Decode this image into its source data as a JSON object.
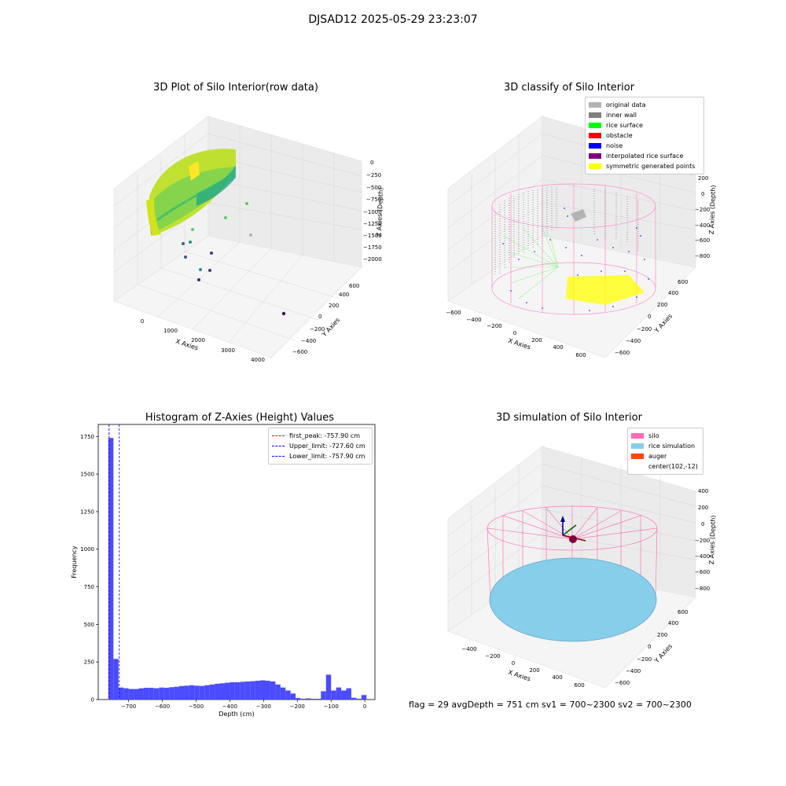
{
  "suptitle": "DJSAD12 2025-05-29 23:23:07",
  "status_text": "flag = 29  avgDepth = 751 cm  sv1 = 700~2300  sv2 = 700~2300",
  "panels": {
    "raw": {
      "title": "3D Plot of Silo Interior(row data)",
      "xlabel": "X Axies",
      "ylabel": "Y Axies",
      "zlabel": "Z Axies (Depth)",
      "x_ticks": [
        "0",
        "1000",
        "2000",
        "3000",
        "4000"
      ],
      "y_ticks": [
        "−600",
        "−400",
        "−200",
        "0",
        "200",
        "400",
        "600"
      ],
      "z_ticks": [
        "0",
        "−250",
        "−500",
        "−750",
        "−1000",
        "−1250",
        "−1500",
        "−1750",
        "−2000"
      ],
      "colormap": "viridis"
    },
    "classify": {
      "title": "3D classify of Silo Interior",
      "xlabel": "X Axies",
      "ylabel": "Y Axies",
      "zlabel": "Z Axies (Depth)",
      "x_ticks": [
        "−600",
        "−400",
        "−200",
        "0",
        "200",
        "400",
        "600"
      ],
      "y_ticks": [
        "−600",
        "−400",
        "−200",
        "0",
        "200",
        "400",
        "600"
      ],
      "z_ticks": [
        "200",
        "0",
        "−200",
        "−400",
        "−600",
        "−800"
      ],
      "legend": [
        {
          "label": "original data",
          "color": "#b3b3b3"
        },
        {
          "label": "inner wall",
          "color": "#808080"
        },
        {
          "label": "rice surface",
          "color": "#00ff00"
        },
        {
          "label": "obstacle",
          "color": "#ff0000"
        },
        {
          "label": "noise",
          "color": "#0000ff"
        },
        {
          "label": "interpolated rice surface",
          "color": "#800080"
        },
        {
          "label": "symmetric generated points",
          "color": "#ffff00"
        }
      ]
    },
    "simulation": {
      "title": "3D simulation of Silo Interior",
      "xlabel": "X Axies",
      "ylabel": "Y Axies",
      "zlabel": "Z Axies (Depth)",
      "x_ticks": [
        "−400",
        "−200",
        "0",
        "200",
        "400",
        "600"
      ],
      "y_ticks": [
        "−600",
        "−400",
        "−200",
        "0",
        "200",
        "400",
        "600"
      ],
      "z_ticks": [
        "400",
        "200",
        "0",
        "−200",
        "−400",
        "−600",
        "−800"
      ],
      "legend": [
        {
          "label": "silo",
          "color": "#ff69b4"
        },
        {
          "label": "rice simulation",
          "color": "#87ceeb"
        },
        {
          "label": "auger",
          "color": "#ff4500"
        },
        {
          "label": "center(102,-12)",
          "color": ""
        }
      ]
    }
  },
  "chart_data": {
    "type": "bar",
    "title": "Histogram of Z-Axies (Height) Values",
    "xlabel": "Depth (cm)",
    "ylabel": "Frequency",
    "xlim": [
      -790,
      30
    ],
    "ylim": [
      0,
      1830
    ],
    "x_ticks": [
      -700,
      -600,
      -500,
      -400,
      -300,
      -200,
      -100,
      0
    ],
    "x_tick_labels": [
      "−700",
      "−600",
      "−500",
      "−400",
      "−300",
      "−200",
      "−100",
      "0"
    ],
    "y_ticks": [
      0,
      250,
      500,
      750,
      1000,
      1250,
      1500,
      1750
    ],
    "bar_color": "#4b4bff",
    "bin_width": 15,
    "bins": [
      [
        -760,
        1740
      ],
      [
        -745,
        270
      ],
      [
        -730,
        80
      ],
      [
        -715,
        75
      ],
      [
        -700,
        70
      ],
      [
        -685,
        70
      ],
      [
        -670,
        75
      ],
      [
        -655,
        78
      ],
      [
        -640,
        78
      ],
      [
        -625,
        75
      ],
      [
        -610,
        80
      ],
      [
        -595,
        78
      ],
      [
        -580,
        82
      ],
      [
        -565,
        85
      ],
      [
        -550,
        90
      ],
      [
        -535,
        92
      ],
      [
        -520,
        95
      ],
      [
        -505,
        92
      ],
      [
        -490,
        90
      ],
      [
        -475,
        95
      ],
      [
        -460,
        100
      ],
      [
        -445,
        105
      ],
      [
        -430,
        108
      ],
      [
        -415,
        112
      ],
      [
        -400,
        115
      ],
      [
        -385,
        115
      ],
      [
        -370,
        118
      ],
      [
        -355,
        120
      ],
      [
        -340,
        122
      ],
      [
        -325,
        125
      ],
      [
        -310,
        128
      ],
      [
        -295,
        125
      ],
      [
        -280,
        120
      ],
      [
        -265,
        100
      ],
      [
        -250,
        80
      ],
      [
        -235,
        60
      ],
      [
        -220,
        40
      ],
      [
        -205,
        10
      ],
      [
        -190,
        5
      ],
      [
        -175,
        8
      ],
      [
        -160,
        5
      ],
      [
        -145,
        5
      ],
      [
        -130,
        55
      ],
      [
        -115,
        165
      ],
      [
        -100,
        60
      ],
      [
        -85,
        80
      ],
      [
        -70,
        60
      ],
      [
        -55,
        75
      ],
      [
        -40,
        12
      ],
      [
        -25,
        5
      ],
      [
        -10,
        30
      ]
    ],
    "lines": [
      {
        "label": "first_peak: -757.90 cm",
        "x": -757.9,
        "color": "#ff0000"
      },
      {
        "label": "Upper_limit: -727.60 cm",
        "x": -727.6,
        "color": "#0000ff"
      },
      {
        "label": "Lower_limit: -757.90 cm",
        "x": -757.9,
        "color": "#0000ff"
      }
    ],
    "legend_position": "top-right"
  }
}
